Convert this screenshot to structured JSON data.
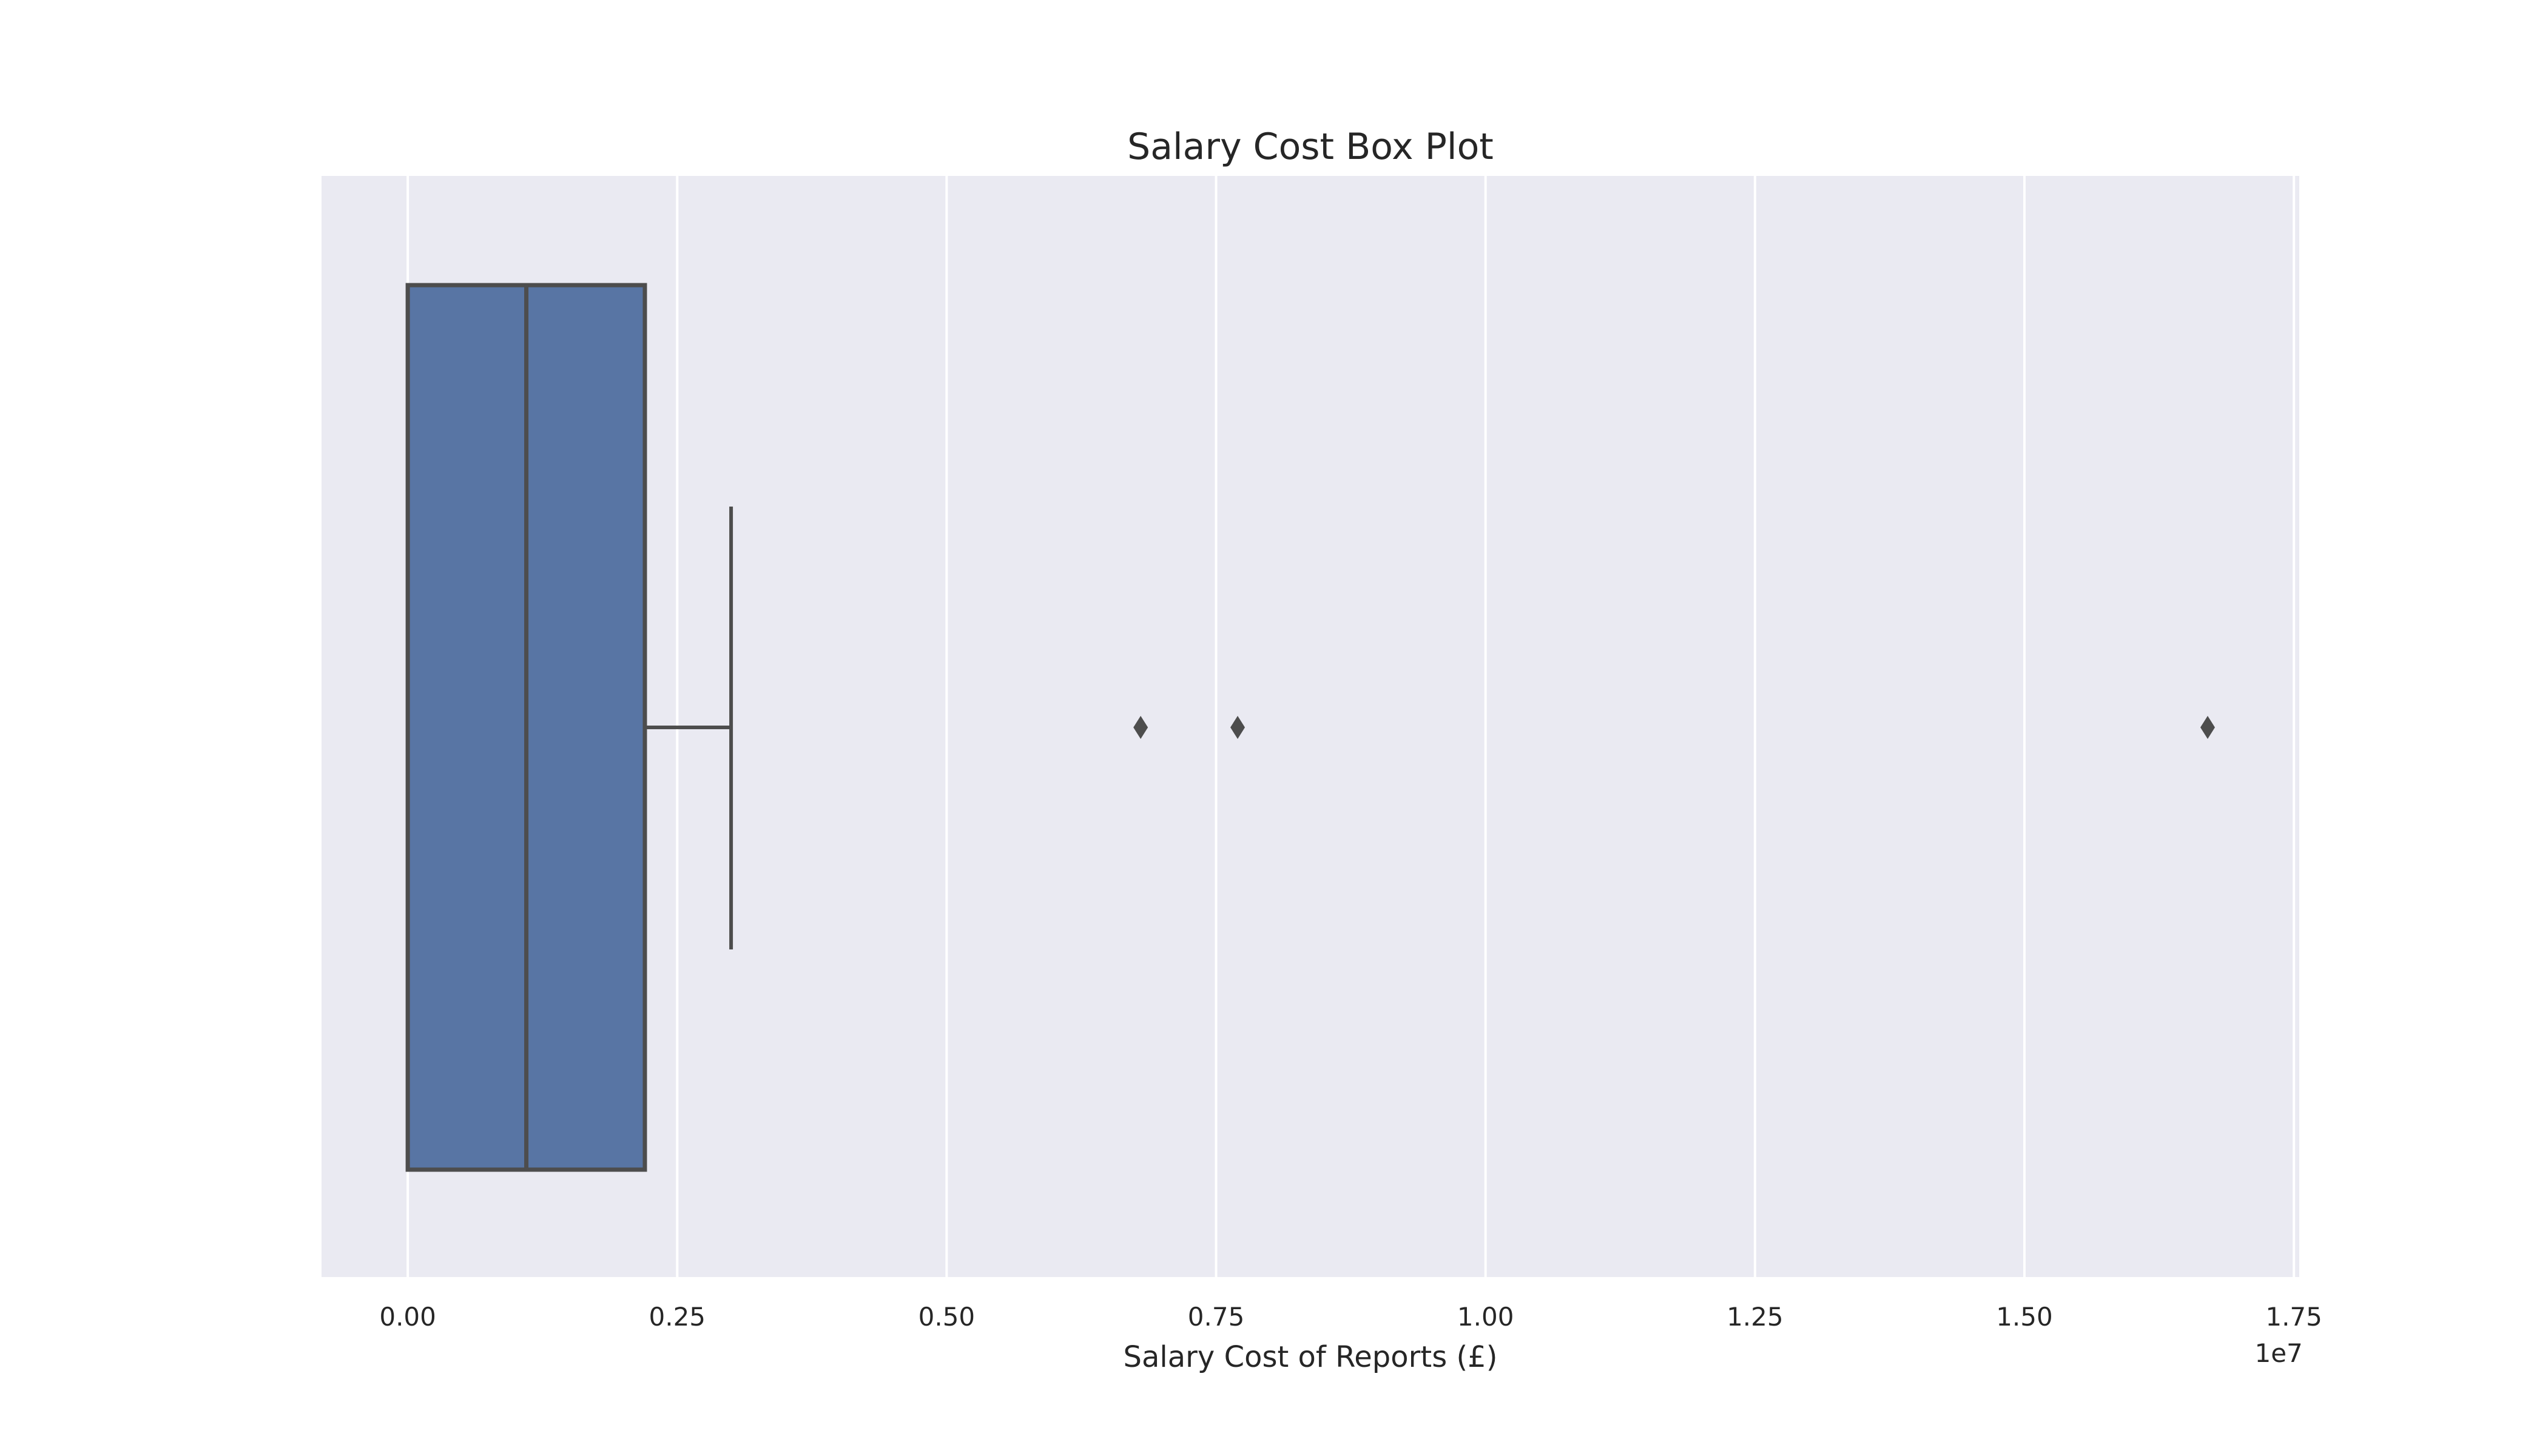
{
  "chart_data": {
    "type": "box",
    "orientation": "horizontal",
    "title": "Salary Cost Box Plot",
    "xlabel": "Salary Cost of Reports (£)",
    "ylabel": "",
    "offset_label": "1e7",
    "xlim": [
      -0.08,
      1.755
    ],
    "x_ticks": [
      0.0,
      0.25,
      0.5,
      0.75,
      1.0,
      1.25,
      1.5,
      1.75
    ],
    "x_tick_labels": [
      "0.00",
      "0.25",
      "0.50",
      "0.75",
      "1.00",
      "1.25",
      "1.50",
      "1.75"
    ],
    "grid": true,
    "box": {
      "q1": 0.0,
      "median": 0.11,
      "q3": 0.22,
      "whisker_low": 0.0,
      "whisker_high": 0.3
    },
    "outliers": [
      0.68,
      0.77,
      1.67
    ],
    "colors": {
      "box_fill": "#5875a4",
      "line": "#4d4d4d",
      "plot_background": "#eaeaf2",
      "grid": "#ffffff"
    }
  }
}
